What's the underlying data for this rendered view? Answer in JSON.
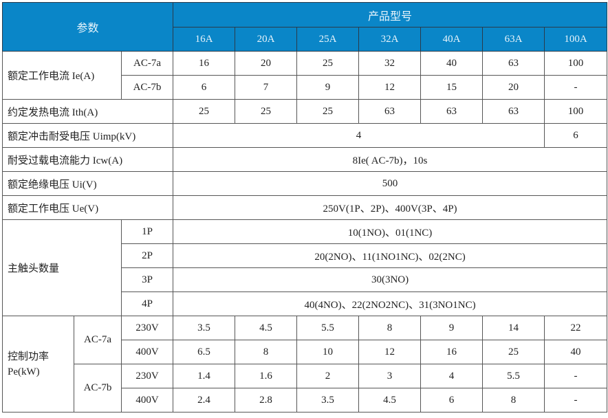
{
  "header": {
    "param_label": "参数",
    "product_label": "产品型号",
    "models": [
      "16A",
      "20A",
      "25A",
      "32A",
      "40A",
      "63A",
      "100A"
    ]
  },
  "rated_current": {
    "label": "额定工作电流 Ie(A)",
    "rows": [
      {
        "cat": "AC-7a",
        "values": [
          "16",
          "20",
          "25",
          "32",
          "40",
          "63",
          "100"
        ]
      },
      {
        "cat": "AC-7b",
        "values": [
          "6",
          "7",
          "9",
          "12",
          "15",
          "20",
          "-"
        ]
      }
    ]
  },
  "thermal_current": {
    "label": "约定发热电流 Ith(A)",
    "values": [
      "25",
      "25",
      "25",
      "63",
      "63",
      "63",
      "100"
    ]
  },
  "impulse_voltage": {
    "label": "额定冲击耐受电压 Uimp(kV)",
    "value_main": "4",
    "value_100A": "6"
  },
  "overload": {
    "label": "耐受过载电流能力 Icw(A)",
    "value": "8Ie( AC-7b)，10s"
  },
  "insulation": {
    "label": "额定绝缘电压 Ui(V)",
    "value": "500"
  },
  "working_voltage": {
    "label": "额定工作电压 Ue(V)",
    "value": "250V(1P、2P)、400V(3P、4P)"
  },
  "contacts": {
    "label": "主触头数量",
    "rows": [
      {
        "poles": "1P",
        "value": "10(1NO)、01(1NC)"
      },
      {
        "poles": "2P",
        "value": "20(2NO)、11(1NO1NC)、02(2NC)"
      },
      {
        "poles": "3P",
        "value": "30(3NO)"
      },
      {
        "poles": "4P",
        "value": "40(4NO)、22(2NO2NC)、31(3NO1NC)"
      }
    ]
  },
  "power": {
    "label_line1": "控制功率",
    "label_line2": "Pe(kW)",
    "groups": [
      {
        "cat": "AC-7a",
        "rows": [
          {
            "voltage": "230V",
            "values": [
              "3.5",
              "4.5",
              "5.5",
              "8",
              "9",
              "14",
              "22"
            ]
          },
          {
            "voltage": "400V",
            "values": [
              "6.5",
              "8",
              "10",
              "12",
              "16",
              "25",
              "40"
            ]
          }
        ]
      },
      {
        "cat": "AC-7b",
        "rows": [
          {
            "voltage": "230V",
            "values": [
              "1.4",
              "1.6",
              "2",
              "3",
              "4",
              "5.5",
              "-"
            ]
          },
          {
            "voltage": "400V",
            "values": [
              "2.4",
              "2.8",
              "3.5",
              "4.5",
              "6",
              "8",
              "-"
            ]
          }
        ]
      }
    ]
  },
  "colors": {
    "header_bg": "#0a86c8",
    "header_text": "#e8f4fb",
    "border": "#555555"
  }
}
